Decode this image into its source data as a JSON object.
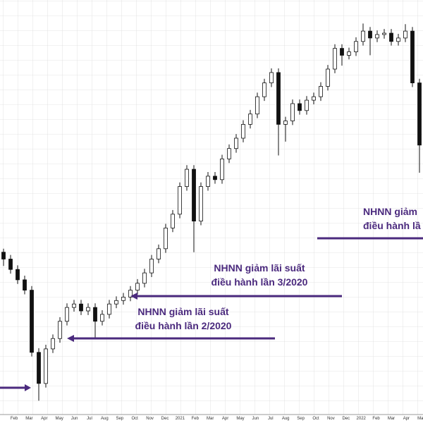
{
  "chart_data": {
    "type": "candlestick",
    "x_labels": [
      "Feb",
      "Mar",
      "Apr",
      "May",
      "Jun",
      "Jul",
      "Aug",
      "Sep",
      "Oct",
      "Nov",
      "Dec",
      "2021",
      "Feb",
      "Mar",
      "Apr",
      "May",
      "Jun",
      "Jul",
      "Aug",
      "Sep",
      "Oct",
      "Nov",
      "Dec",
      "2022",
      "Feb",
      "Mar",
      "Apr",
      "May"
    ],
    "ylim": [
      0,
      600
    ],
    "open": [
      235,
      225,
      210,
      195,
      180,
      90,
      45,
      95,
      110,
      135,
      155,
      160,
      150,
      155,
      135,
      145,
      160,
      165,
      170,
      180,
      190,
      205,
      225,
      240,
      270,
      290,
      330,
      355,
      280,
      330,
      345,
      340,
      370,
      385,
      400,
      420,
      435,
      460,
      480,
      495,
      420,
      425,
      450,
      440,
      455,
      460,
      475,
      500,
      530,
      520,
      525,
      540,
      555,
      545,
      550,
      552,
      540,
      545,
      555,
      480
    ],
    "high": [
      240,
      231,
      216,
      201,
      186,
      96,
      101,
      116,
      141,
      161,
      166,
      166,
      161,
      161,
      151,
      166,
      171,
      176,
      186,
      196,
      211,
      231,
      246,
      276,
      296,
      336,
      361,
      361,
      336,
      351,
      351,
      376,
      391,
      406,
      426,
      441,
      466,
      486,
      501,
      501,
      431,
      456,
      456,
      461,
      466,
      481,
      506,
      536,
      536,
      531,
      546,
      566,
      561,
      556,
      558,
      558,
      551,
      565,
      561,
      486
    ],
    "low": [
      215,
      204,
      189,
      174,
      84,
      20,
      39,
      89,
      104,
      129,
      149,
      144,
      144,
      110,
      129,
      139,
      154,
      159,
      164,
      174,
      184,
      199,
      219,
      234,
      264,
      284,
      324,
      235,
      274,
      324,
      334,
      334,
      364,
      379,
      394,
      414,
      429,
      454,
      474,
      375,
      395,
      419,
      434,
      434,
      449,
      454,
      469,
      494,
      505,
      514,
      519,
      534,
      520,
      539,
      544,
      534,
      534,
      539,
      474,
      350
    ],
    "close": [
      225,
      210,
      195,
      180,
      90,
      45,
      95,
      110,
      135,
      155,
      160,
      150,
      155,
      135,
      145,
      160,
      165,
      170,
      180,
      190,
      205,
      225,
      240,
      270,
      290,
      330,
      355,
      280,
      330,
      345,
      340,
      370,
      385,
      400,
      420,
      435,
      460,
      480,
      495,
      420,
      425,
      450,
      440,
      455,
      460,
      475,
      500,
      530,
      520,
      525,
      540,
      555,
      545,
      550,
      552,
      540,
      545,
      555,
      480,
      390
    ],
    "up_color": "#ffffff",
    "down_color": "#111111",
    "grid": true,
    "annotations": [
      {
        "lines": [
          "NHNN giảm lãi suất",
          "điều hành lần 2/2020"
        ],
        "color": "#4b2a7e"
      },
      {
        "lines": [
          "NHNN giảm lãi suất",
          "điều hành lần 3/2020"
        ],
        "color": "#4b2a7e"
      },
      {
        "lines": [
          "NHNN giảm",
          "điều hành lầ"
        ],
        "color": "#4b2a7e"
      }
    ]
  }
}
